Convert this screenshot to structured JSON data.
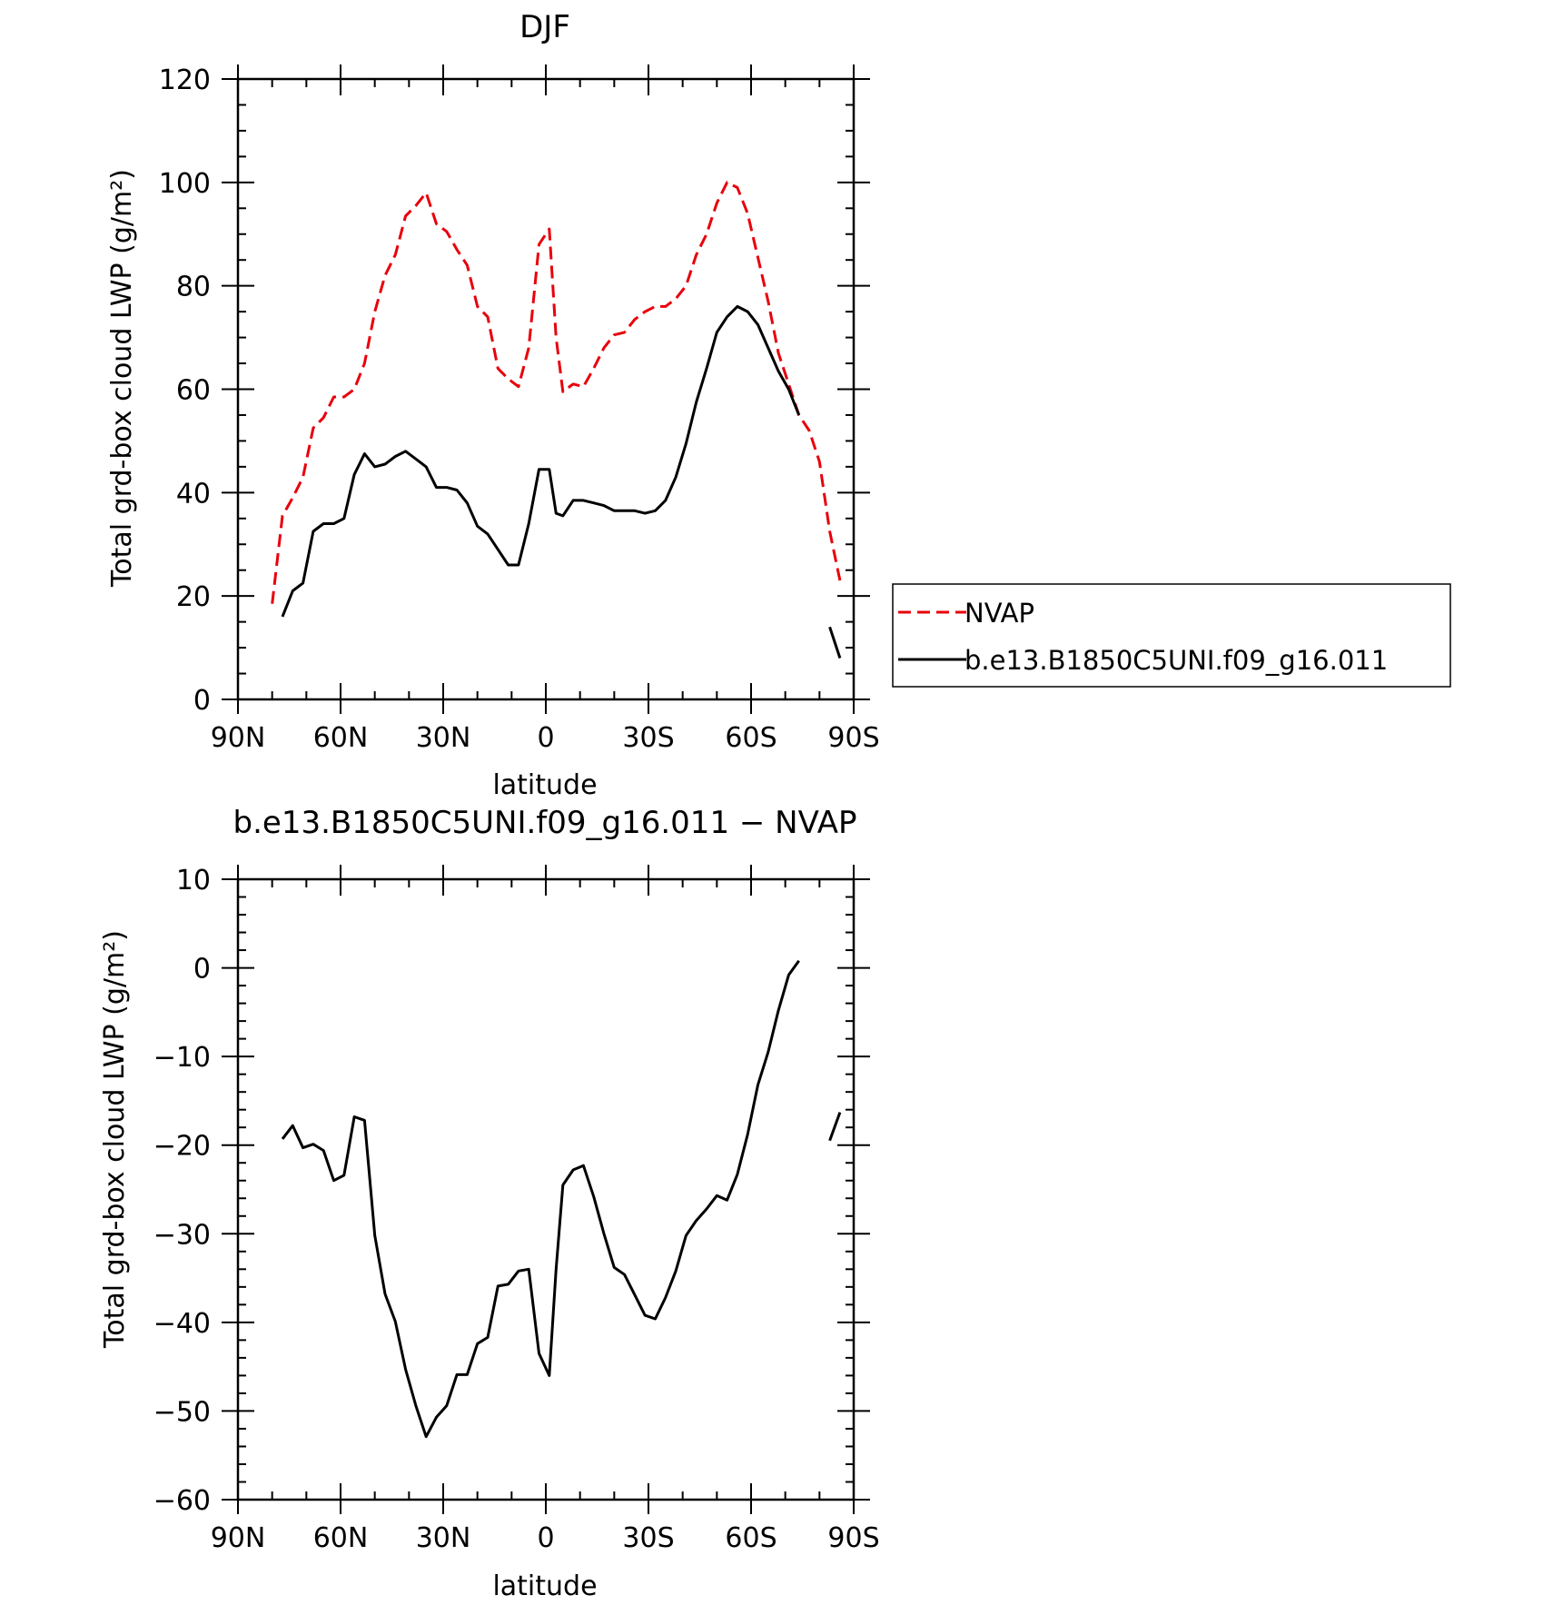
{
  "chart_data": [
    {
      "type": "line",
      "title": "DJF",
      "xlabel": "latitude",
      "ylabel": "Total grd-box cloud LWP (g/m²)",
      "xlim": [
        90,
        -90
      ],
      "ylim": [
        0,
        120
      ],
      "xticks": [
        90,
        60,
        30,
        0,
        -30,
        -60,
        -90
      ],
      "xtick_labels": [
        "90N",
        "60N",
        "30N",
        "0",
        "30S",
        "60S",
        "90S"
      ],
      "yticks": [
        0,
        20,
        40,
        60,
        80,
        100,
        120
      ],
      "ytick_labels": [
        "0",
        "20",
        "40",
        "60",
        "80",
        "100",
        "120"
      ],
      "grid": false,
      "legend_position": "right",
      "series": [
        {
          "name": "NVAP",
          "color": "#e8000b",
          "dash": "dashed",
          "segments": [
            [
              [
                80,
                18.5
              ],
              [
                77,
                35.5
              ],
              [
                74,
                39
              ],
              [
                71,
                43
              ],
              [
                68,
                52.5
              ],
              [
                65,
                54.5
              ],
              [
                62,
                58.5
              ],
              [
                59,
                58.5
              ],
              [
                56,
                60
              ],
              [
                53,
                65
              ],
              [
                50,
                75
              ],
              [
                47,
                82
              ],
              [
                44,
                86
              ],
              [
                41,
                93.5
              ],
              [
                38,
                95.5
              ],
              [
                35,
                98
              ],
              [
                32,
                92
              ],
              [
                29,
                90.5
              ],
              [
                26,
                87
              ],
              [
                23,
                84
              ],
              [
                20,
                76
              ],
              [
                17,
                74
              ],
              [
                14,
                64
              ],
              [
                11,
                62
              ],
              [
                8,
                60.5
              ],
              [
                5,
                68
              ],
              [
                2,
                88
              ],
              [
                -1,
                91
              ],
              [
                -3,
                70
              ],
              [
                -5,
                59.5
              ],
              [
                -8,
                61
              ],
              [
                -11,
                60.5
              ],
              [
                -14,
                64
              ],
              [
                -17,
                68
              ],
              [
                -20,
                70.5
              ],
              [
                -23,
                71
              ],
              [
                -26,
                73.5
              ],
              [
                -29,
                75
              ],
              [
                -32,
                76
              ],
              [
                -35,
                76
              ],
              [
                -38,
                77.5
              ],
              [
                -41,
                80
              ],
              [
                -44,
                86
              ],
              [
                -47,
                90
              ],
              [
                -50,
                96
              ],
              [
                -53,
                100
              ],
              [
                -56,
                99
              ],
              [
                -59,
                94
              ],
              [
                -62,
                85.5
              ],
              [
                -65,
                77
              ],
              [
                -68,
                67
              ],
              [
                -71,
                61
              ],
              [
                -74,
                55
              ],
              [
                -77,
                52
              ],
              [
                -80,
                46
              ],
              [
                -83,
                32.5
              ],
              [
                -86,
                23
              ]
            ]
          ]
        },
        {
          "name": "b.e13.B1850C5UNI.f09_g16.011",
          "color": "#000000",
          "dash": "solid",
          "segments": [
            [
              [
                77,
                16
              ],
              [
                74,
                21
              ],
              [
                71,
                22.5
              ],
              [
                68,
                32.5
              ],
              [
                65,
                34
              ],
              [
                62,
                34
              ],
              [
                59,
                35
              ],
              [
                56,
                43.5
              ],
              [
                53,
                47.5
              ],
              [
                50,
                45
              ],
              [
                47,
                45.5
              ],
              [
                44,
                47
              ],
              [
                41,
                48
              ],
              [
                38,
                46.5
              ],
              [
                35,
                45
              ],
              [
                32,
                41
              ],
              [
                29,
                41
              ],
              [
                26,
                40.5
              ],
              [
                23,
                38
              ],
              [
                20,
                33.5
              ],
              [
                17,
                32
              ],
              [
                14,
                29
              ],
              [
                11,
                26
              ],
              [
                8,
                26
              ],
              [
                5,
                34
              ],
              [
                2,
                44.5
              ],
              [
                -1,
                44.5
              ],
              [
                -3,
                36
              ],
              [
                -5,
                35.5
              ],
              [
                -8,
                38.5
              ],
              [
                -11,
                38.5
              ],
              [
                -14,
                38
              ],
              [
                -17,
                37.5
              ],
              [
                -20,
                36.5
              ],
              [
                -23,
                36.5
              ],
              [
                -26,
                36.5
              ],
              [
                -29,
                36
              ],
              [
                -32,
                36.5
              ],
              [
                -35,
                38.5
              ],
              [
                -38,
                43
              ],
              [
                -41,
                49.5
              ],
              [
                -44,
                57.5
              ],
              [
                -47,
                64
              ],
              [
                -50,
                71
              ],
              [
                -53,
                74
              ],
              [
                -56,
                76
              ],
              [
                -59,
                75
              ],
              [
                -62,
                72.5
              ],
              [
                -65,
                68
              ],
              [
                -68,
                63.5
              ],
              [
                -71,
                60
              ],
              [
                -74,
                55
              ]
            ],
            [
              [
                -83,
                14
              ],
              [
                -86,
                8
              ]
            ]
          ]
        }
      ]
    },
    {
      "type": "line",
      "title": "b.e13.B1850C5UNI.f09_g16.011 − NVAP",
      "xlabel": "latitude",
      "ylabel": "Total grd-box cloud LWP (g/m²)",
      "xlim": [
        90,
        -90
      ],
      "ylim": [
        -60,
        10
      ],
      "xticks": [
        90,
        60,
        30,
        0,
        -30,
        -60,
        -90
      ],
      "xtick_labels": [
        "90N",
        "60N",
        "30N",
        "0",
        "30S",
        "60S",
        "90S"
      ],
      "yticks": [
        -60,
        -50,
        -40,
        -30,
        -20,
        -10,
        0,
        10
      ],
      "ytick_labels": [
        "−60",
        "−50",
        "−40",
        "−30",
        "−20",
        "−10",
        "0",
        "10"
      ],
      "grid": false,
      "series": [
        {
          "name": "",
          "color": "#000000",
          "dash": "solid",
          "segments": [
            [
              [
                77,
                -19.3
              ],
              [
                74,
                -17.8
              ],
              [
                71,
                -20.3
              ],
              [
                68,
                -19.9
              ],
              [
                65,
                -20.6
              ],
              [
                62,
                -24
              ],
              [
                59,
                -23.4
              ],
              [
                56,
                -16.8
              ],
              [
                53,
                -17.2
              ],
              [
                50,
                -30.2
              ],
              [
                47,
                -36.8
              ],
              [
                44,
                -39.9
              ],
              [
                41,
                -45.3
              ],
              [
                38,
                -49.4
              ],
              [
                35,
                -52.9
              ],
              [
                32,
                -50.7
              ],
              [
                29,
                -49.4
              ],
              [
                26,
                -45.9
              ],
              [
                23,
                -45.9
              ],
              [
                20,
                -42.4
              ],
              [
                17,
                -41.7
              ],
              [
                14,
                -35.9
              ],
              [
                11,
                -35.7
              ],
              [
                8,
                -34.2
              ],
              [
                5,
                -34
              ],
              [
                2,
                -43.5
              ],
              [
                -1,
                -46
              ],
              [
                -3,
                -34
              ],
              [
                -5,
                -24.5
              ],
              [
                -8,
                -22.8
              ],
              [
                -11,
                -22.3
              ],
              [
                -14,
                -25.8
              ],
              [
                -17,
                -30
              ],
              [
                -20,
                -33.8
              ],
              [
                -23,
                -34.6
              ],
              [
                -26,
                -36.9
              ],
              [
                -29,
                -39.2
              ],
              [
                -32,
                -39.6
              ],
              [
                -35,
                -37.2
              ],
              [
                -38,
                -34.2
              ],
              [
                -41,
                -30.2
              ],
              [
                -44,
                -28.5
              ],
              [
                -47,
                -27.2
              ],
              [
                -50,
                -25.7
              ],
              [
                -53,
                -26.2
              ],
              [
                -56,
                -23.3
              ],
              [
                -59,
                -18.8
              ],
              [
                -62,
                -13.2
              ],
              [
                -65,
                -9.5
              ],
              [
                -68,
                -4.8
              ],
              [
                -71,
                -0.8
              ],
              [
                -74,
                0.8
              ]
            ],
            [
              [
                -83,
                -19.5
              ],
              [
                -86,
                -16.3
              ]
            ]
          ]
        }
      ]
    }
  ]
}
